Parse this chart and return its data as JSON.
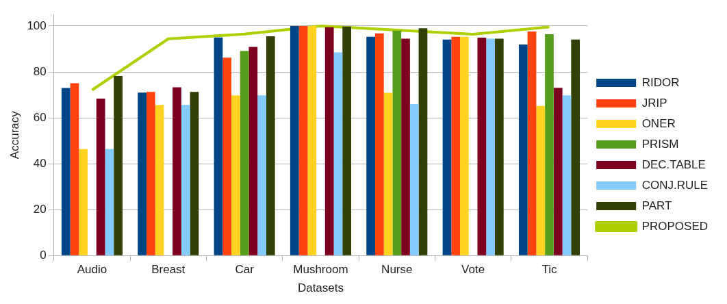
{
  "chart_data": {
    "type": "bar",
    "xlabel": "Datasets",
    "ylabel": "Accuracy",
    "categories": [
      "Audio",
      "Breast",
      "Car",
      "Mushroom",
      "Nurse",
      "Vote",
      "Tic"
    ],
    "series": [
      {
        "name": "RIDOR",
        "color": "#004586",
        "values": [
          73,
          71,
          95,
          100,
          95.3,
          94.1,
          91.9
        ]
      },
      {
        "name": "JRIP",
        "color": "#ff420e",
        "values": [
          75.1,
          71.3,
          86.2,
          100,
          96.8,
          95.3,
          97.6
        ]
      },
      {
        "name": "ONER",
        "color": "#ffd320",
        "values": [
          46.4,
          65.6,
          69.8,
          100,
          70.9,
          95.3,
          65.2
        ]
      },
      {
        "name": "PRISM",
        "color": "#579d1c",
        "values": [
          null,
          null,
          89.1,
          null,
          98,
          null,
          96.4
        ]
      },
      {
        "name": "DEC.TABLE",
        "color": "#7e0021",
        "values": [
          68.4,
          73.3,
          90.9,
          99.5,
          94.5,
          94.9,
          73.1
        ]
      },
      {
        "name": "CONJ.RULE",
        "color": "#83caff",
        "values": [
          46.4,
          65.6,
          69.8,
          88.5,
          66,
          94.5,
          69.8
        ]
      },
      {
        "name": "PART",
        "color": "#314004",
        "values": [
          78.2,
          71.3,
          95.5,
          99.8,
          99,
          94.5,
          94.1
        ]
      },
      {
        "name": "PROPOSED",
        "color": "#aecf00",
        "type": "line",
        "values": [
          72.1,
          94.4,
          96.5,
          100,
          98.2,
          96.4,
          99.6
        ]
      }
    ],
    "ylim": [
      0,
      105
    ],
    "yticks": [
      0,
      20,
      40,
      60,
      80,
      100
    ],
    "grid": "y",
    "legend": "right",
    "marker": "none"
  }
}
